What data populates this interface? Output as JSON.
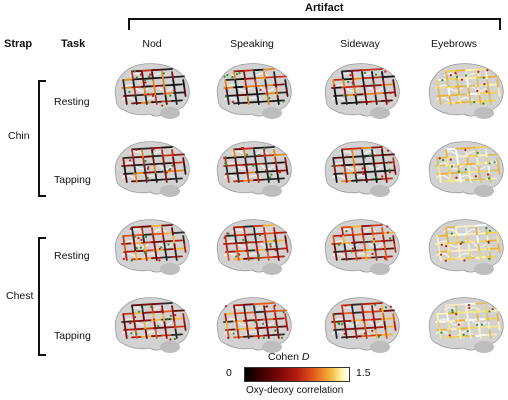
{
  "header": {
    "artifact_title": "Artifact",
    "strap_label": "Strap",
    "task_label": "Task"
  },
  "columns": [
    "Nod",
    "Speaking",
    "Sideway",
    "Eyebrows"
  ],
  "straps": [
    {
      "name": "Chin",
      "tasks": [
        "Resting",
        "Tapping"
      ]
    },
    {
      "name": "Chest",
      "tasks": [
        "Resting",
        "Tapping"
      ]
    }
  ],
  "colorbar": {
    "title_prefix": "Cohen",
    "title_var": "D",
    "min_label": "0",
    "max_label": "1.5",
    "caption": "Oxy-deoxy correlation",
    "colors": [
      "#000000",
      "#7a0606",
      "#b51d0e",
      "#e25a1a",
      "#f2b43a",
      "#fff4a8",
      "#ffffff"
    ]
  },
  "brain_tints": [
    [
      "dark",
      "dark",
      "dark",
      "light"
    ],
    [
      "dark",
      "dark",
      "dark",
      "light"
    ],
    [
      "red",
      "red",
      "red",
      "light"
    ],
    [
      "red",
      "red",
      "red",
      "light"
    ]
  ]
}
